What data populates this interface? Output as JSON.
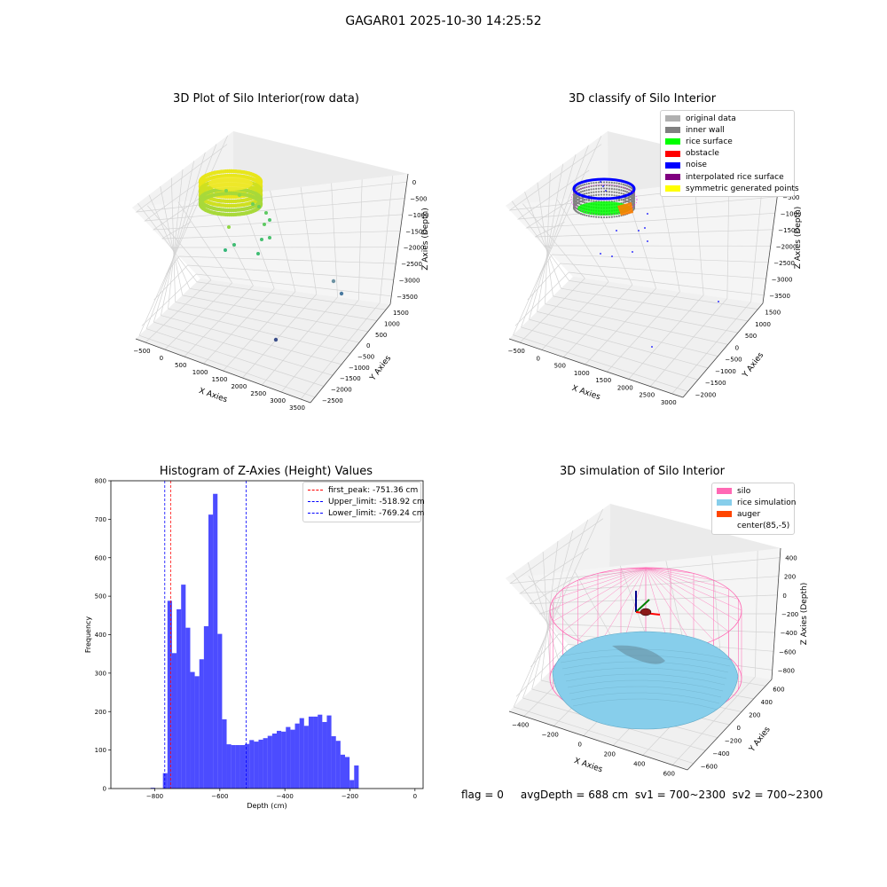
{
  "figure": {
    "suptitle": "GAGAR01 2025-10-30 14:25:52",
    "status_text": "flag = 0     avgDepth = 688 cm  sv1 = 700~2300  sv2 = 700~2300"
  },
  "chart_data": [
    {
      "panel": "top-left",
      "type": "scatter",
      "title": "3D Plot of Silo Interior(row data)",
      "xlabel": "X Axies",
      "ylabel": "Y Axies",
      "zlabel": "Z Axies (Depth)",
      "x_ticks": [
        "−500",
        "0",
        "500",
        "1000",
        "1500",
        "2000",
        "2500",
        "3000",
        "3500"
      ],
      "y_ticks": [
        "1500",
        "1000",
        "500",
        "0",
        "−500",
        "−1000",
        "−1500",
        "−2000",
        "−2500"
      ],
      "z_ticks": [
        "0",
        "−500",
        "−1000",
        "−1500",
        "−2000",
        "−2500",
        "−3000",
        "−3500"
      ],
      "colormap": "viridis",
      "outlier_points": [
        [
          1700,
          1500,
          -3300
        ],
        [
          1900,
          1400,
          -3500
        ],
        [
          2600,
          700,
          -3500
        ]
      ]
    },
    {
      "panel": "top-right",
      "type": "scatter",
      "title": "3D classify of Silo Interior",
      "xlabel": "X Axies",
      "ylabel": "Y Axies",
      "zlabel": "Z Axies (Depth)",
      "x_ticks": [
        "−500",
        "0",
        "500",
        "1000",
        "1500",
        "2000",
        "2500",
        "3000"
      ],
      "y_ticks": [
        "1500",
        "1000",
        "500",
        "0",
        "−500",
        "−1000",
        "−1500",
        "−2000"
      ],
      "z_ticks": [
        "0",
        "−500",
        "−1000",
        "−1500",
        "−2000",
        "−2500",
        "−3000",
        "−3500"
      ],
      "legend": [
        {
          "label": "original data",
          "color": "#b0b0b0"
        },
        {
          "label": "inner wall",
          "color": "#808080"
        },
        {
          "label": "rice surface",
          "color": "#00ff00"
        },
        {
          "label": "obstacle",
          "color": "#ff0000"
        },
        {
          "label": "noise",
          "color": "#0000ff"
        },
        {
          "label": "interpolated rice surface",
          "color": "#800080"
        },
        {
          "label": "symmetric generated points",
          "color": "#ffff00"
        }
      ]
    },
    {
      "panel": "bottom-left",
      "type": "bar",
      "title": "Histogram of Z-Axies (Height) Values",
      "xlabel": "Depth (cm)",
      "ylabel": "Frequency",
      "xlim": [
        -935,
        25
      ],
      "ylim": [
        0,
        800
      ],
      "x_ticks": [
        -800,
        -600,
        -400,
        -200,
        0
      ],
      "y_ticks": [
        0,
        100,
        200,
        300,
        400,
        500,
        600,
        700,
        800
      ],
      "bar_color": "#0000ff",
      "bin_width": 14,
      "bin_start": -775,
      "counts": [
        40,
        488,
        352,
        466,
        530,
        418,
        303,
        292,
        336,
        422,
        712,
        766,
        402,
        180,
        115,
        113,
        113,
        113,
        116,
        126,
        122,
        127,
        131,
        137,
        143,
        150,
        148,
        160,
        153,
        169,
        183,
        163,
        187,
        187,
        192,
        173,
        190,
        136,
        124,
        88,
        82,
        22,
        60
      ],
      "extra_bins": [
        {
          "start": -813,
          "count": 2
        }
      ],
      "lines": [
        {
          "label": "first_peak: -751.36 cm",
          "value": -751.36,
          "color": "#ff0000"
        },
        {
          "label": "Upper_limit: -518.92 cm",
          "value": -518.92,
          "color": "#0000ff"
        },
        {
          "label": "Lower_limit: -769.24 cm",
          "value": -769.24,
          "color": "#0000ff"
        }
      ]
    },
    {
      "panel": "bottom-right",
      "type": "scatter",
      "title": "3D simulation of Silo Interior",
      "xlabel": "X Axies",
      "ylabel": "Y Axies",
      "zlabel": "Z Axies (Depth)",
      "x_ticks": [
        "−400",
        "−200",
        "0",
        "200",
        "400",
        "600"
      ],
      "y_ticks": [
        "600",
        "400",
        "200",
        "0",
        "−200",
        "−400",
        "−600"
      ],
      "z_ticks": [
        "400",
        "200",
        "0",
        "−200",
        "−400",
        "−600",
        "−800"
      ],
      "legend": [
        {
          "label": "silo",
          "color": "#ff69b4"
        },
        {
          "label": "rice simulation",
          "color": "#87ceeb"
        },
        {
          "label": "auger",
          "color": "#ff4500"
        },
        {
          "label": "center(85,-5)",
          "color": ""
        }
      ]
    }
  ]
}
